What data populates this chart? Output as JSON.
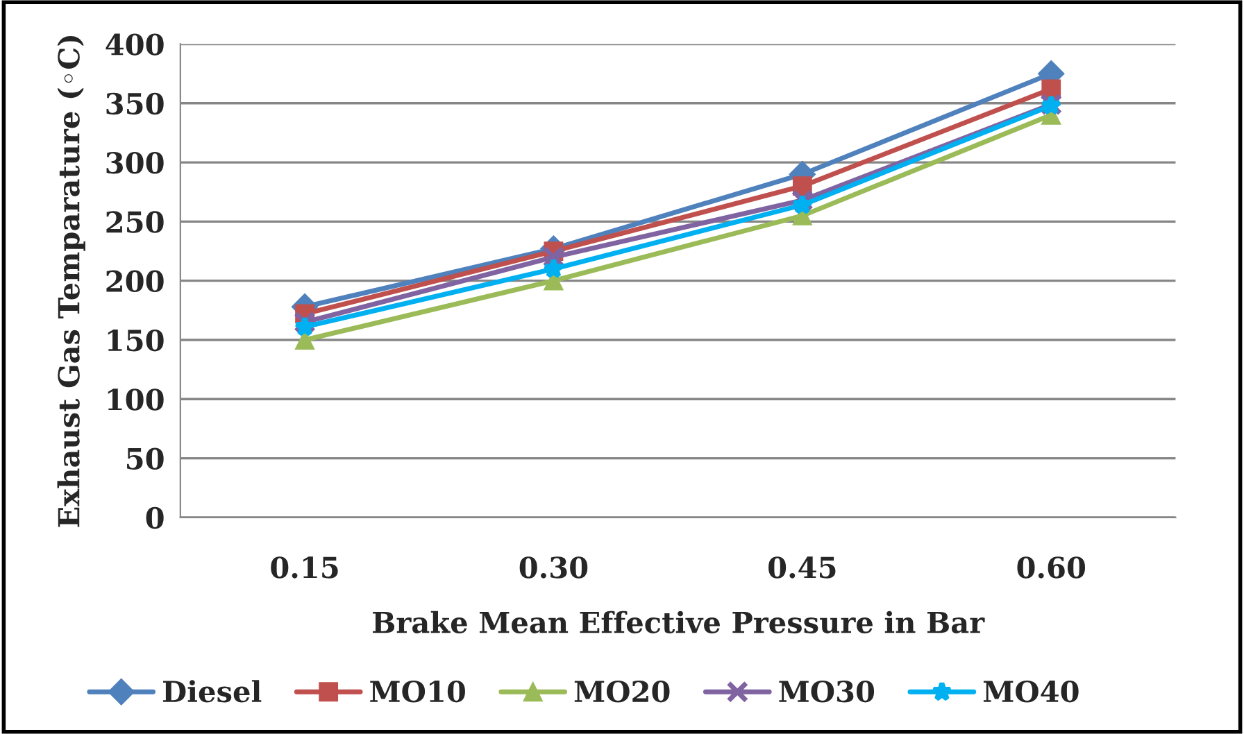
{
  "chart_data": {
    "type": "line",
    "xlabel": "Brake Mean Effective Pressure in Bar",
    "ylabel": "Exhaust Gas Temparature (◦C)",
    "categories": [
      "0.15",
      "0.30",
      "0.45",
      "0.60"
    ],
    "series": [
      {
        "name": "Diesel",
        "color": "#4f81bd",
        "marker": "diamond",
        "values": [
          178,
          227,
          290,
          375
        ]
      },
      {
        "name": "MO10",
        "color": "#c0504d",
        "marker": "square",
        "values": [
          172,
          225,
          280,
          362
        ]
      },
      {
        "name": "MO20",
        "color": "#9bbb59",
        "marker": "triangle",
        "values": [
          150,
          200,
          255,
          340
        ]
      },
      {
        "name": "MO30",
        "color": "#8064a2",
        "marker": "cross",
        "values": [
          165,
          220,
          268,
          349
        ]
      },
      {
        "name": "MO40",
        "color": "#00b0f0",
        "marker": "star",
        "values": [
          161,
          210,
          264,
          348
        ]
      }
    ],
    "ylim": [
      0,
      400
    ],
    "yticks": [
      0,
      50,
      100,
      150,
      200,
      250,
      300,
      350,
      400
    ],
    "grid": "y",
    "legend": "bottom",
    "line_style": "solid"
  }
}
